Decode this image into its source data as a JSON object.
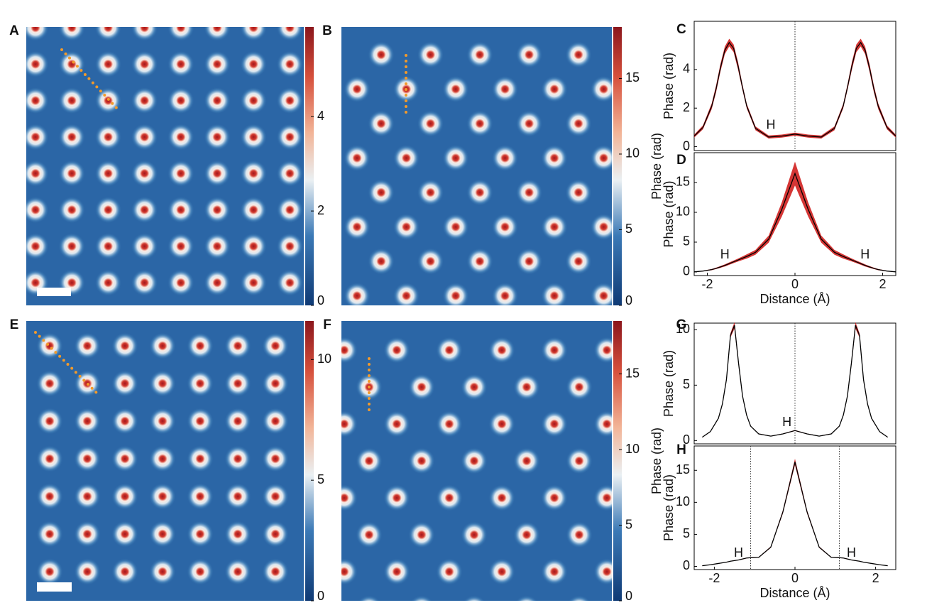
{
  "chart_data": [
    {
      "type": "heatmap",
      "panel": "A",
      "ylim": [
        0,
        5.9
      ],
      "yticks": [
        0,
        2,
        4
      ]
    },
    {
      "type": "heatmap",
      "panel": "B",
      "ylim": [
        0,
        18.4
      ],
      "yticks": [
        0,
        5,
        10,
        15
      ],
      "ylabel": "Phase (rad)"
    },
    {
      "type": "line",
      "panel": "C",
      "ylabel": "Phase (rad)",
      "xlim": [
        -2.3,
        2.3
      ],
      "ylim": [
        -0.2,
        6.5
      ],
      "yticks": [
        0,
        2,
        4
      ],
      "vlines": [
        0
      ],
      "annotations": [
        "H"
      ],
      "color": "#000000",
      "band_color": "#d0201f",
      "x": [
        -2.3,
        -2.1,
        -1.9,
        -1.8,
        -1.7,
        -1.6,
        -1.5,
        -1.4,
        -1.3,
        -1.2,
        -1.1,
        -0.9,
        -0.6,
        -0.3,
        0,
        0.3,
        0.6,
        0.9,
        1.1,
        1.2,
        1.3,
        1.4,
        1.5,
        1.6,
        1.7,
        1.8,
        1.9,
        2.1,
        2.3
      ],
      "values": [
        0.55,
        1.0,
        2.1,
        3.0,
        4.1,
        5.0,
        5.4,
        5.1,
        4.2,
        3.1,
        2.1,
        0.95,
        0.5,
        0.55,
        0.65,
        0.55,
        0.5,
        0.95,
        2.1,
        3.1,
        4.2,
        5.1,
        5.4,
        5.0,
        4.1,
        3.0,
        2.1,
        1.0,
        0.55
      ],
      "errors": [
        0.08,
        0.1,
        0.15,
        0.18,
        0.2,
        0.2,
        0.2,
        0.2,
        0.2,
        0.15,
        0.12,
        0.1,
        0.08,
        0.08,
        0.08,
        0.08,
        0.08,
        0.1,
        0.12,
        0.15,
        0.2,
        0.2,
        0.2,
        0.2,
        0.2,
        0.18,
        0.15,
        0.1,
        0.08
      ]
    },
    {
      "type": "line",
      "panel": "D",
      "ylabel": "Phase (rad)",
      "xlabel": "Distance (Å)",
      "xlim": [
        -2.3,
        2.3
      ],
      "ylim": [
        -0.6,
        20
      ],
      "xticks": [
        -2,
        0,
        2
      ],
      "yticks": [
        0,
        5,
        10,
        15
      ],
      "annotations": [
        "H",
        "H"
      ],
      "color": "#000000",
      "band_color": "#d0201f",
      "x": [
        -2.3,
        -2.1,
        -1.9,
        -1.8,
        -1.7,
        -1.6,
        -1.5,
        -1.4,
        -1.3,
        -1.2,
        -1.1,
        -0.9,
        -0.6,
        -0.3,
        0,
        0.3,
        0.6,
        0.9,
        1.1,
        1.2,
        1.3,
        1.4,
        1.5,
        1.6,
        1.7,
        1.8,
        1.9,
        2.1,
        2.3
      ],
      "values": [
        0.02,
        0.15,
        0.4,
        0.6,
        0.85,
        1.1,
        1.4,
        1.7,
        2.0,
        2.3,
        2.6,
        3.3,
        5.5,
        10.5,
        16.5,
        10.5,
        5.5,
        3.3,
        2.6,
        2.3,
        2.0,
        1.7,
        1.4,
        1.1,
        0.85,
        0.6,
        0.4,
        0.15,
        0.02
      ],
      "errors": [
        0.02,
        0.05,
        0.1,
        0.12,
        0.15,
        0.18,
        0.2,
        0.22,
        0.25,
        0.3,
        0.35,
        0.4,
        0.6,
        1.2,
        2.0,
        1.2,
        0.6,
        0.4,
        0.35,
        0.3,
        0.25,
        0.22,
        0.2,
        0.18,
        0.15,
        0.12,
        0.1,
        0.05,
        0.02
      ]
    },
    {
      "type": "heatmap",
      "panel": "E",
      "ylim": [
        0,
        11.6
      ],
      "yticks": [
        0,
        5,
        10
      ]
    },
    {
      "type": "heatmap",
      "panel": "F",
      "ylim": [
        0,
        18.5
      ],
      "yticks": [
        0,
        5,
        10,
        15
      ],
      "ylabel": "Phase (rad)"
    },
    {
      "type": "line",
      "panel": "G",
      "ylabel": "Phase (rad)",
      "xlim": [
        -2.5,
        2.5
      ],
      "ylim": [
        -0.3,
        10.6
      ],
      "yticks": [
        0,
        5,
        10
      ],
      "vlines": [
        0
      ],
      "annotations": [
        "H"
      ],
      "color": "#000000",
      "band_color": "#d0201f",
      "x": [
        -2.3,
        -2.1,
        -1.9,
        -1.8,
        -1.7,
        -1.6,
        -1.5,
        -1.4,
        -1.3,
        -1.2,
        -1.1,
        -0.9,
        -0.6,
        -0.3,
        0,
        0.3,
        0.6,
        0.9,
        1.1,
        1.2,
        1.3,
        1.4,
        1.5,
        1.6,
        1.7,
        1.8,
        1.9,
        2.1,
        2.3
      ],
      "values": [
        0.3,
        0.8,
        2.0,
        3.3,
        5.5,
        9.5,
        10.4,
        7.0,
        4.0,
        2.3,
        1.3,
        0.6,
        0.4,
        0.6,
        0.9,
        0.6,
        0.4,
        0.6,
        1.3,
        2.3,
        4.0,
        7.0,
        10.4,
        9.5,
        5.5,
        3.3,
        2.0,
        0.8,
        0.3
      ],
      "errors": [
        0.02,
        0.03,
        0.05,
        0.08,
        0.12,
        0.2,
        0.3,
        0.2,
        0.1,
        0.06,
        0.04,
        0.03,
        0.02,
        0.03,
        0.04,
        0.03,
        0.02,
        0.03,
        0.04,
        0.06,
        0.1,
        0.2,
        0.3,
        0.2,
        0.12,
        0.08,
        0.05,
        0.03,
        0.02
      ]
    },
    {
      "type": "line",
      "panel": "H",
      "ylabel": "Phase (rad)",
      "xlabel": "Distance (Å)",
      "xlim": [
        -2.5,
        2.5
      ],
      "ylim": [
        -0.5,
        18.8
      ],
      "xticks": [
        -2,
        0,
        2
      ],
      "yticks": [
        0,
        5,
        10,
        15
      ],
      "vlines": [
        -1.1,
        1.1
      ],
      "annotations": [
        "H",
        "H"
      ],
      "color": "#000000",
      "band_color": "#d0201f",
      "x": [
        -2.3,
        -2.1,
        -1.9,
        -1.8,
        -1.7,
        -1.6,
        -1.5,
        -1.4,
        -1.3,
        -1.2,
        -1.1,
        -0.9,
        -0.6,
        -0.3,
        0,
        0.3,
        0.6,
        0.9,
        1.1,
        1.2,
        1.3,
        1.4,
        1.5,
        1.6,
        1.7,
        1.8,
        1.9,
        2.1,
        2.3
      ],
      "values": [
        0.1,
        0.25,
        0.45,
        0.55,
        0.65,
        0.8,
        0.9,
        1.0,
        1.15,
        1.3,
        1.35,
        1.4,
        3.0,
        8.5,
        16.3,
        8.5,
        3.0,
        1.4,
        1.35,
        1.3,
        1.15,
        1.0,
        0.9,
        0.8,
        0.65,
        0.55,
        0.45,
        0.25,
        0.1
      ],
      "errors": [
        0.02,
        0.02,
        0.03,
        0.03,
        0.03,
        0.04,
        0.04,
        0.04,
        0.05,
        0.05,
        0.05,
        0.06,
        0.1,
        0.25,
        0.5,
        0.25,
        0.1,
        0.06,
        0.05,
        0.05,
        0.05,
        0.04,
        0.04,
        0.04,
        0.03,
        0.03,
        0.03,
        0.02,
        0.02
      ]
    }
  ]
}
